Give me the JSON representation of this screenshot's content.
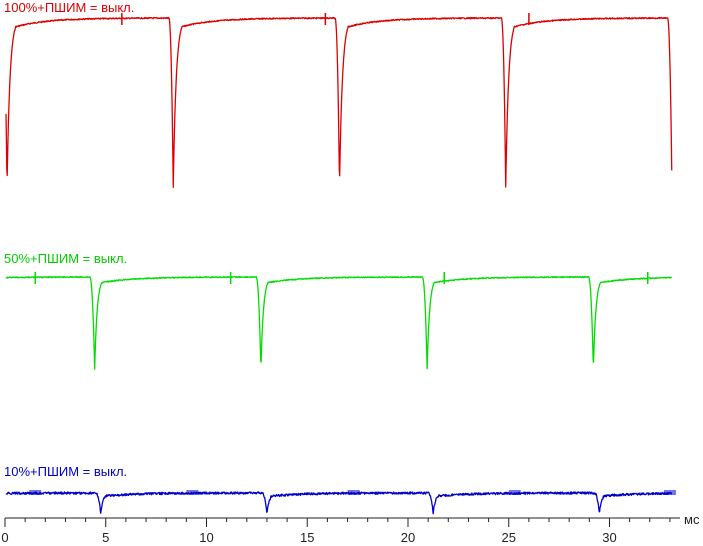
{
  "chart_data": {
    "type": "line",
    "title": "",
    "xlabel": "",
    "ylabel": "",
    "x_unit": "мс",
    "xlim": [
      0,
      33.5
    ],
    "x_ticks": [
      0,
      5,
      10,
      15,
      20,
      25,
      30
    ],
    "grid": false,
    "legend": "none",
    "series": [
      {
        "name": "100%+ПШИМ = выкл.",
        "color": "#dd0000",
        "period_ms": 8.25,
        "first_dip_ms": 0.1,
        "dip_depth": 1.0,
        "rise_tau_ms": 0.35
      },
      {
        "name": "50%+ПШИМ = выкл.",
        "color": "#00dd00",
        "period_ms": 8.25,
        "first_dip_ms": 4.45,
        "dip_depth": 1.0,
        "rise_tau_ms": 0.3
      },
      {
        "name": "10%+ПШИМ = выкл.",
        "color": "#0000cc",
        "period_ms": 8.25,
        "first_dip_ms": 4.75,
        "dip_depth": 1.0,
        "rise_tau_ms": 0.3
      }
    ]
  }
}
